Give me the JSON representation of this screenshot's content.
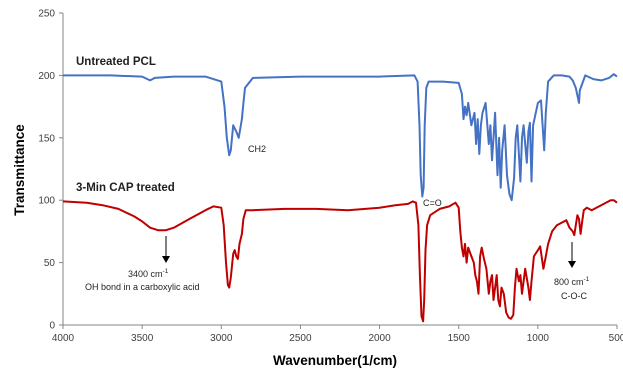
{
  "chart_data": {
    "type": "line",
    "title": "",
    "xlabel": "Wavenumber(1/cm)",
    "ylabel": "Transmittance",
    "xlim": [
      4000,
      500
    ],
    "ylim": [
      0,
      250
    ],
    "x_reversed": true,
    "x_ticks": [
      4000,
      3500,
      3000,
      2500,
      2000,
      1500,
      1000,
      500
    ],
    "y_ticks": [
      0,
      50,
      100,
      150,
      200,
      250
    ],
    "grid": false,
    "legend": "none",
    "series": [
      {
        "name": "Untreated PCL",
        "color": "#4472c4",
        "points": [
          [
            4000,
            200
          ],
          [
            3700,
            200
          ],
          [
            3500,
            199
          ],
          [
            3450,
            196
          ],
          [
            3420,
            198
          ],
          [
            3300,
            199
          ],
          [
            3100,
            199
          ],
          [
            3050,
            197
          ],
          [
            3000,
            195
          ],
          [
            2980,
            175
          ],
          [
            2965,
            150
          ],
          [
            2950,
            136
          ],
          [
            2940,
            140
          ],
          [
            2925,
            160
          ],
          [
            2905,
            155
          ],
          [
            2890,
            150
          ],
          [
            2870,
            165
          ],
          [
            2865,
            172
          ],
          [
            2850,
            190
          ],
          [
            2800,
            198
          ],
          [
            2500,
            199
          ],
          [
            2000,
            199
          ],
          [
            1780,
            200
          ],
          [
            1760,
            195
          ],
          [
            1748,
            160
          ],
          [
            1740,
            120
          ],
          [
            1730,
            103
          ],
          [
            1722,
            110
          ],
          [
            1715,
            160
          ],
          [
            1705,
            190
          ],
          [
            1690,
            195
          ],
          [
            1600,
            195
          ],
          [
            1500,
            194
          ],
          [
            1480,
            185
          ],
          [
            1470,
            165
          ],
          [
            1460,
            175
          ],
          [
            1450,
            168
          ],
          [
            1440,
            178
          ],
          [
            1420,
            160
          ],
          [
            1400,
            170
          ],
          [
            1390,
            145
          ],
          [
            1380,
            165
          ],
          [
            1370,
            137
          ],
          [
            1360,
            160
          ],
          [
            1350,
            170
          ],
          [
            1330,
            178
          ],
          [
            1310,
            145
          ],
          [
            1300,
            160
          ],
          [
            1290,
            132
          ],
          [
            1280,
            150
          ],
          [
            1270,
            170
          ],
          [
            1255,
            120
          ],
          [
            1245,
            150
          ],
          [
            1235,
            110
          ],
          [
            1225,
            140
          ],
          [
            1210,
            160
          ],
          [
            1195,
            120
          ],
          [
            1180,
            105
          ],
          [
            1165,
            100
          ],
          [
            1150,
            118
          ],
          [
            1140,
            150
          ],
          [
            1130,
            160
          ],
          [
            1110,
            115
          ],
          [
            1100,
            150
          ],
          [
            1090,
            160
          ],
          [
            1070,
            130
          ],
          [
            1060,
            155
          ],
          [
            1050,
            162
          ],
          [
            1040,
            115
          ],
          [
            1030,
            160
          ],
          [
            1000,
            178
          ],
          [
            980,
            180
          ],
          [
            960,
            140
          ],
          [
            950,
            170
          ],
          [
            935,
            195
          ],
          [
            900,
            200
          ],
          [
            850,
            200
          ],
          [
            800,
            199
          ],
          [
            780,
            196
          ],
          [
            760,
            190
          ],
          [
            740,
            178
          ],
          [
            735,
            188
          ],
          [
            700,
            200
          ],
          [
            650,
            197
          ],
          [
            600,
            196
          ],
          [
            550,
            198
          ],
          [
            520,
            201
          ],
          [
            500,
            199
          ]
        ]
      },
      {
        "name": "3-Min CAP treated",
        "color": "#c00000",
        "points": [
          [
            4000,
            99
          ],
          [
            3850,
            98
          ],
          [
            3750,
            96
          ],
          [
            3650,
            93
          ],
          [
            3550,
            87
          ],
          [
            3500,
            83
          ],
          [
            3450,
            78
          ],
          [
            3400,
            76
          ],
          [
            3350,
            76
          ],
          [
            3300,
            78
          ],
          [
            3200,
            85
          ],
          [
            3100,
            92
          ],
          [
            3050,
            95
          ],
          [
            3000,
            94
          ],
          [
            2985,
            80
          ],
          [
            2970,
            50
          ],
          [
            2958,
            32
          ],
          [
            2950,
            30
          ],
          [
            2940,
            38
          ],
          [
            2925,
            57
          ],
          [
            2915,
            60
          ],
          [
            2905,
            55
          ],
          [
            2895,
            53
          ],
          [
            2885,
            65
          ],
          [
            2870,
            73
          ],
          [
            2860,
            85
          ],
          [
            2845,
            92
          ],
          [
            2800,
            92
          ],
          [
            2600,
            93
          ],
          [
            2400,
            93
          ],
          [
            2200,
            92
          ],
          [
            2000,
            94
          ],
          [
            1900,
            96
          ],
          [
            1820,
            97
          ],
          [
            1790,
            99
          ],
          [
            1770,
            98
          ],
          [
            1755,
            80
          ],
          [
            1745,
            40
          ],
          [
            1735,
            7
          ],
          [
            1725,
            3
          ],
          [
            1718,
            20
          ],
          [
            1710,
            60
          ],
          [
            1700,
            80
          ],
          [
            1680,
            88
          ],
          [
            1620,
            93
          ],
          [
            1560,
            95
          ],
          [
            1520,
            98
          ],
          [
            1500,
            94
          ],
          [
            1490,
            75
          ],
          [
            1480,
            62
          ],
          [
            1470,
            55
          ],
          [
            1460,
            65
          ],
          [
            1450,
            50
          ],
          [
            1440,
            62
          ],
          [
            1420,
            55
          ],
          [
            1405,
            50
          ],
          [
            1395,
            40
          ],
          [
            1385,
            35
          ],
          [
            1375,
            25
          ],
          [
            1365,
            55
          ],
          [
            1355,
            62
          ],
          [
            1340,
            53
          ],
          [
            1325,
            45
          ],
          [
            1310,
            25
          ],
          [
            1300,
            35
          ],
          [
            1290,
            40
          ],
          [
            1280,
            20
          ],
          [
            1270,
            30
          ],
          [
            1260,
            40
          ],
          [
            1250,
            20
          ],
          [
            1240,
            15
          ],
          [
            1230,
            30
          ],
          [
            1215,
            25
          ],
          [
            1200,
            10
          ],
          [
            1185,
            6
          ],
          [
            1170,
            5
          ],
          [
            1155,
            8
          ],
          [
            1145,
            30
          ],
          [
            1135,
            45
          ],
          [
            1120,
            35
          ],
          [
            1110,
            40
          ],
          [
            1100,
            25
          ],
          [
            1090,
            35
          ],
          [
            1080,
            45
          ],
          [
            1060,
            30
          ],
          [
            1050,
            20
          ],
          [
            1040,
            35
          ],
          [
            1025,
            55
          ],
          [
            1000,
            60
          ],
          [
            985,
            63
          ],
          [
            965,
            45
          ],
          [
            950,
            55
          ],
          [
            935,
            65
          ],
          [
            910,
            75
          ],
          [
            880,
            80
          ],
          [
            850,
            82
          ],
          [
            820,
            84
          ],
          [
            800,
            78
          ],
          [
            780,
            75
          ],
          [
            770,
            72
          ],
          [
            760,
            80
          ],
          [
            750,
            88
          ],
          [
            740,
            85
          ],
          [
            730,
            73
          ],
          [
            720,
            83
          ],
          [
            710,
            92
          ],
          [
            690,
            94
          ],
          [
            660,
            92
          ],
          [
            630,
            94
          ],
          [
            600,
            96
          ],
          [
            570,
            98
          ],
          [
            540,
            100
          ],
          [
            520,
            100
          ],
          [
            500,
            98
          ]
        ]
      }
    ],
    "annotations": {
      "series1": "Untreated PCL",
      "series2": "3-Min CAP treated",
      "ch2": "CH2",
      "co": "C=O",
      "oh_value": "3400 cm",
      "oh_sup": "-1",
      "oh_desc": "OH bond in a carboxylic acid",
      "coc_value": "800 cm",
      "coc_sup": "-1",
      "coc_desc": "C-O-C"
    }
  }
}
